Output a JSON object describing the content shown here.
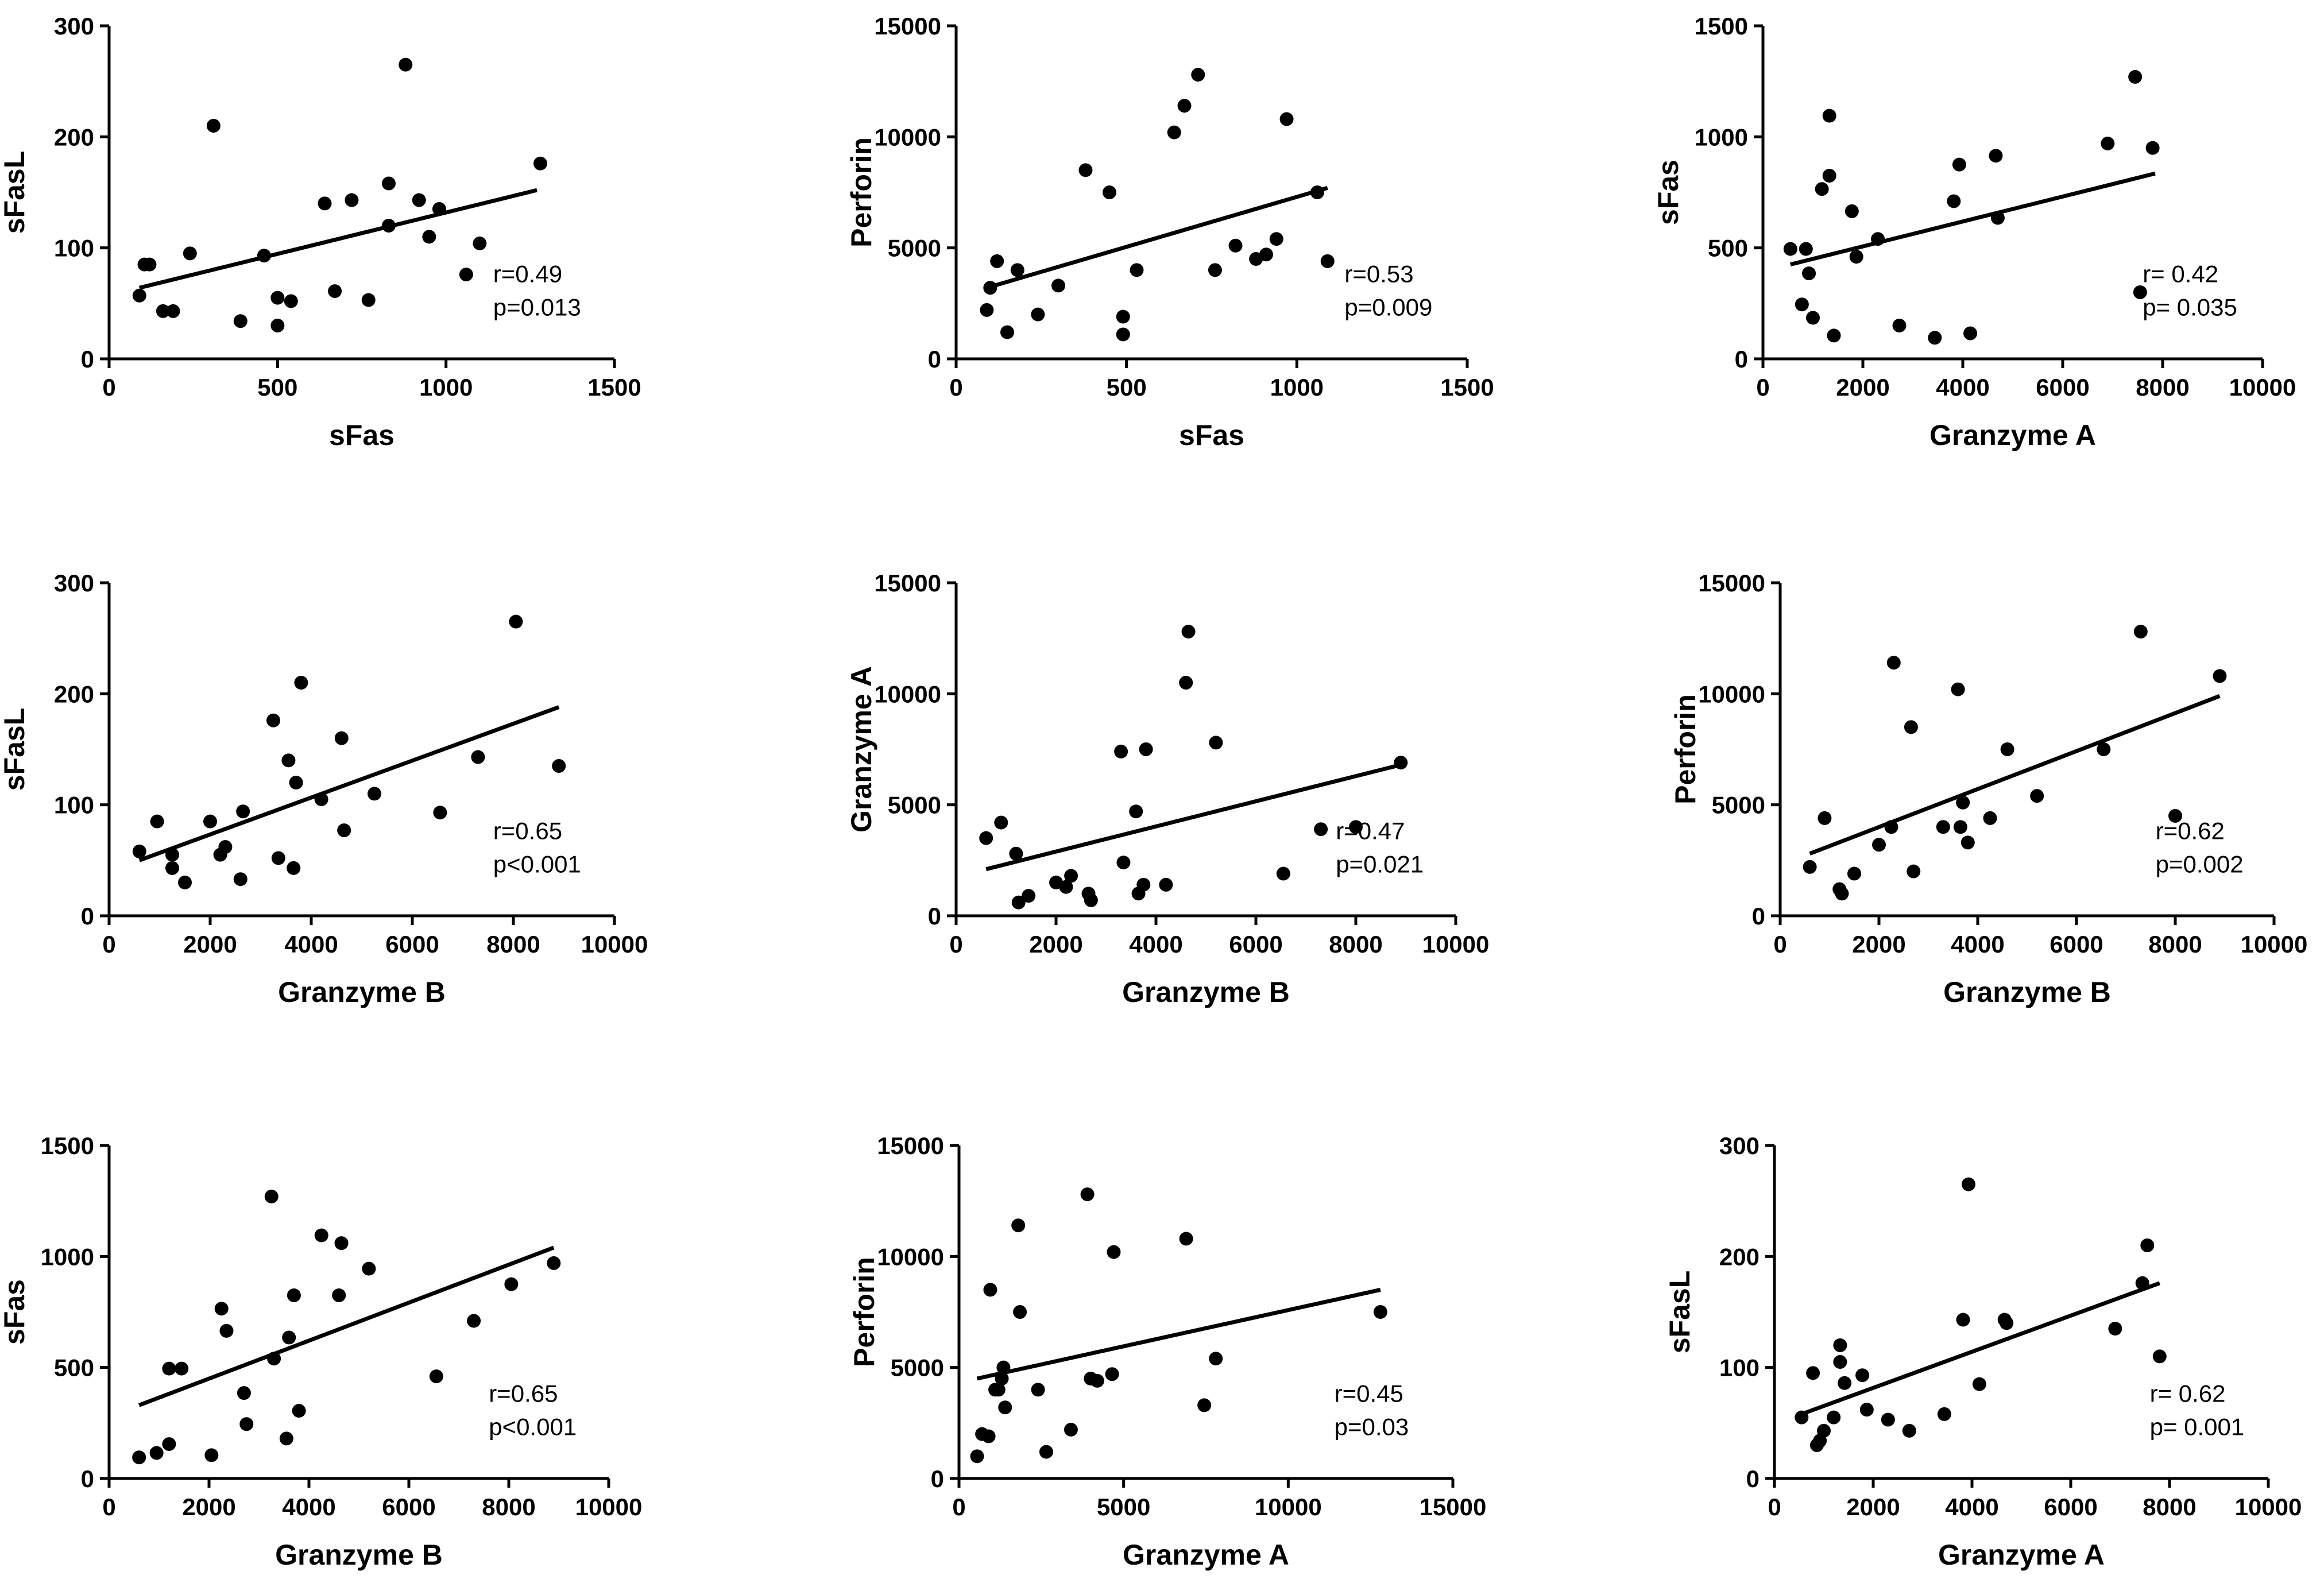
{
  "chart_data": [
    {
      "type": "scatter",
      "xlabel": "sFas",
      "ylabel": "sFasL",
      "xlim": [
        0,
        1500
      ],
      "ylim": [
        0,
        300
      ],
      "xticks": [
        0,
        500,
        1000,
        1500
      ],
      "yticks": [
        0,
        100,
        200,
        300
      ],
      "annotation": [
        "r=0.49",
        "p=0.013"
      ],
      "fit": [
        [
          90,
          64
        ],
        [
          1270,
          152
        ]
      ],
      "points": [
        [
          90,
          57
        ],
        [
          105,
          85
        ],
        [
          120,
          85
        ],
        [
          160,
          43
        ],
        [
          190,
          43
        ],
        [
          240,
          95
        ],
        [
          310,
          210
        ],
        [
          390,
          34
        ],
        [
          460,
          93
        ],
        [
          500,
          30
        ],
        [
          500,
          55
        ],
        [
          540,
          52
        ],
        [
          640,
          140
        ],
        [
          670,
          61
        ],
        [
          720,
          143
        ],
        [
          770,
          53
        ],
        [
          830,
          120
        ],
        [
          830,
          158
        ],
        [
          880,
          265
        ],
        [
          920,
          143
        ],
        [
          950,
          110
        ],
        [
          980,
          135
        ],
        [
          1060,
          76
        ],
        [
          1100,
          104
        ],
        [
          1280,
          176
        ]
      ]
    },
    {
      "type": "scatter",
      "xlabel": "sFas",
      "ylabel": "Perforin",
      "xlim": [
        0,
        1500
      ],
      "ylim": [
        0,
        15000
      ],
      "xticks": [
        0,
        500,
        1000,
        1500
      ],
      "yticks": [
        0,
        5000,
        10000,
        15000
      ],
      "annotation": [
        "r=0.53",
        "p=0.009"
      ],
      "fit": [
        [
          90,
          3200
        ],
        [
          1090,
          7700
        ]
      ],
      "points": [
        [
          90,
          2200
        ],
        [
          100,
          3200
        ],
        [
          120,
          4400
        ],
        [
          150,
          1200
        ],
        [
          180,
          4000
        ],
        [
          240,
          2000
        ],
        [
          300,
          3300
        ],
        [
          380,
          8500
        ],
        [
          450,
          7500
        ],
        [
          490,
          1900
        ],
        [
          490,
          1100
        ],
        [
          530,
          4000
        ],
        [
          640,
          10200
        ],
        [
          670,
          11400
        ],
        [
          710,
          12800
        ],
        [
          760,
          4000
        ],
        [
          820,
          5100
        ],
        [
          880,
          4500
        ],
        [
          910,
          4700
        ],
        [
          940,
          5400
        ],
        [
          970,
          10800
        ],
        [
          1060,
          7500
        ],
        [
          1090,
          4400
        ]
      ]
    },
    {
      "type": "scatter",
      "xlabel": "Granzyme A",
      "ylabel": "sFas",
      "xlim": [
        0,
        10000
      ],
      "ylim": [
        0,
        1500
      ],
      "xticks": [
        0,
        2000,
        4000,
        6000,
        8000,
        10000
      ],
      "yticks": [
        0,
        500,
        1000,
        1500
      ],
      "annotation": [
        "r= 0.42",
        "p= 0.035"
      ],
      "fit": [
        [
          550,
          425
        ],
        [
          7850,
          835
        ]
      ],
      "points": [
        [
          550,
          495
        ],
        [
          780,
          245
        ],
        [
          860,
          495
        ],
        [
          920,
          385
        ],
        [
          1000,
          185
        ],
        [
          1180,
          765
        ],
        [
          1330,
          1095
        ],
        [
          1330,
          825
        ],
        [
          1420,
          105
        ],
        [
          1780,
          665
        ],
        [
          1870,
          460
        ],
        [
          2300,
          540
        ],
        [
          2730,
          150
        ],
        [
          3440,
          95
        ],
        [
          3820,
          710
        ],
        [
          3930,
          875
        ],
        [
          4150,
          115
        ],
        [
          4660,
          915
        ],
        [
          4700,
          635
        ],
        [
          6900,
          970
        ],
        [
          7450,
          1270
        ],
        [
          7550,
          300
        ],
        [
          7800,
          950
        ]
      ]
    },
    {
      "type": "scatter",
      "xlabel": "Granzyme B",
      "ylabel": "sFasL",
      "xlim": [
        0,
        10000
      ],
      "ylim": [
        0,
        300
      ],
      "xticks": [
        0,
        2000,
        4000,
        6000,
        8000,
        10000
      ],
      "yticks": [
        0,
        100,
        200,
        300
      ],
      "annotation": [
        "r=0.65",
        "p<0.001"
      ],
      "fit": [
        [
          600,
          50
        ],
        [
          8900,
          188
        ]
      ],
      "points": [
        [
          600,
          58
        ],
        [
          950,
          85
        ],
        [
          1250,
          55
        ],
        [
          1250,
          43
        ],
        [
          1500,
          30
        ],
        [
          2000,
          85
        ],
        [
          2200,
          55
        ],
        [
          2300,
          62
        ],
        [
          2600,
          33
        ],
        [
          2650,
          94
        ],
        [
          3250,
          176
        ],
        [
          3350,
          52
        ],
        [
          3550,
          140
        ],
        [
          3650,
          43
        ],
        [
          3700,
          120
        ],
        [
          3800,
          210
        ],
        [
          4200,
          105
        ],
        [
          4600,
          160
        ],
        [
          4650,
          77
        ],
        [
          5250,
          110
        ],
        [
          6550,
          93
        ],
        [
          7300,
          143
        ],
        [
          8050,
          265
        ],
        [
          8900,
          135
        ]
      ]
    },
    {
      "type": "scatter",
      "xlabel": "Granzyme B",
      "ylabel": "Granzyme A",
      "xlim": [
        0,
        10000
      ],
      "ylim": [
        0,
        15000
      ],
      "xticks": [
        0,
        2000,
        4000,
        6000,
        8000,
        10000
      ],
      "yticks": [
        0,
        5000,
        10000,
        15000
      ],
      "annotation": [
        "r=0.47",
        "p=0.021"
      ],
      "fit": [
        [
          600,
          2100
        ],
        [
          8900,
          6800
        ]
      ],
      "points": [
        [
          600,
          3500
        ],
        [
          900,
          4200
        ],
        [
          1200,
          2800
        ],
        [
          1250,
          600
        ],
        [
          1450,
          900
        ],
        [
          2000,
          1500
        ],
        [
          2200,
          1300
        ],
        [
          2300,
          1800
        ],
        [
          2650,
          1000
        ],
        [
          2700,
          700
        ],
        [
          3300,
          7400
        ],
        [
          3350,
          2400
        ],
        [
          3600,
          4700
        ],
        [
          3650,
          1000
        ],
        [
          3750,
          1400
        ],
        [
          3800,
          7500
        ],
        [
          4200,
          1400
        ],
        [
          4600,
          10500
        ],
        [
          4650,
          12800
        ],
        [
          5200,
          7800
        ],
        [
          6550,
          1900
        ],
        [
          7300,
          3900
        ],
        [
          8000,
          4000
        ],
        [
          8900,
          6900
        ]
      ]
    },
    {
      "type": "scatter",
      "xlabel": "Granzyme B",
      "ylabel": "Perforin",
      "xlim": [
        0,
        10000
      ],
      "ylim": [
        0,
        15000
      ],
      "xticks": [
        0,
        2000,
        4000,
        6000,
        8000,
        10000
      ],
      "yticks": [
        0,
        5000,
        10000,
        15000
      ],
      "annotation": [
        "r=0.62",
        "p=0.002"
      ],
      "fit": [
        [
          600,
          2800
        ],
        [
          8900,
          9900
        ]
      ],
      "points": [
        [
          600,
          2200
        ],
        [
          900,
          4400
        ],
        [
          1200,
          1200
        ],
        [
          1250,
          1000
        ],
        [
          1500,
          1900
        ],
        [
          2000,
          3200
        ],
        [
          2250,
          4000
        ],
        [
          2300,
          11400
        ],
        [
          2650,
          8500
        ],
        [
          2700,
          2000
        ],
        [
          3300,
          4000
        ],
        [
          3600,
          10200
        ],
        [
          3650,
          4000
        ],
        [
          3700,
          5100
        ],
        [
          3800,
          3300
        ],
        [
          4250,
          4400
        ],
        [
          4600,
          7500
        ],
        [
          5200,
          5400
        ],
        [
          6550,
          7500
        ],
        [
          7300,
          12800
        ],
        [
          8000,
          4500
        ],
        [
          8900,
          10800
        ]
      ]
    },
    {
      "type": "scatter",
      "xlabel": "Granzyme B",
      "ylabel": "sFas",
      "xlim": [
        0,
        10000
      ],
      "ylim": [
        0,
        1500
      ],
      "xticks": [
        0,
        2000,
        4000,
        6000,
        8000,
        10000
      ],
      "yticks": [
        0,
        500,
        1000,
        1500
      ],
      "annotation": [
        "r=0.65",
        "p<0.001"
      ],
      "fit": [
        [
          600,
          330
        ],
        [
          8900,
          1040
        ]
      ],
      "points": [
        [
          600,
          95
        ],
        [
          950,
          115
        ],
        [
          1200,
          155
        ],
        [
          1200,
          495
        ],
        [
          1450,
          495
        ],
        [
          2050,
          105
        ],
        [
          2250,
          765
        ],
        [
          2350,
          665
        ],
        [
          2700,
          385
        ],
        [
          2750,
          245
        ],
        [
          3250,
          1270
        ],
        [
          3300,
          540
        ],
        [
          3550,
          180
        ],
        [
          3600,
          635
        ],
        [
          3700,
          825
        ],
        [
          3800,
          305
        ],
        [
          4250,
          1095
        ],
        [
          4600,
          825
        ],
        [
          4650,
          1060
        ],
        [
          5200,
          945
        ],
        [
          6550,
          460
        ],
        [
          7300,
          710
        ],
        [
          8050,
          875
        ],
        [
          8900,
          970
        ]
      ]
    },
    {
      "type": "scatter",
      "xlabel": "Granzyme A",
      "ylabel": "Perforin",
      "xlim": [
        0,
        15000
      ],
      "ylim": [
        0,
        15000
      ],
      "xticks": [
        0,
        5000,
        10000,
        15000
      ],
      "yticks": [
        0,
        5000,
        10000,
        15000
      ],
      "annotation": [
        "r=0.45",
        "p=0.03"
      ],
      "fit": [
        [
          550,
          4500
        ],
        [
          12800,
          8500
        ]
      ],
      "points": [
        [
          550,
          1000
        ],
        [
          700,
          2000
        ],
        [
          900,
          1900
        ],
        [
          950,
          8500
        ],
        [
          1100,
          4000
        ],
        [
          1200,
          4000
        ],
        [
          1300,
          4500
        ],
        [
          1350,
          5000
        ],
        [
          1400,
          3200
        ],
        [
          1800,
          11400
        ],
        [
          1850,
          7500
        ],
        [
          2400,
          4000
        ],
        [
          2650,
          1200
        ],
        [
          3400,
          2200
        ],
        [
          3900,
          12800
        ],
        [
          4000,
          4500
        ],
        [
          4200,
          4400
        ],
        [
          4650,
          4700
        ],
        [
          4700,
          10200
        ],
        [
          6900,
          10800
        ],
        [
          7450,
          3300
        ],
        [
          7800,
          5400
        ],
        [
          12800,
          7500
        ]
      ]
    },
    {
      "type": "scatter",
      "xlabel": "Granzyme A",
      "ylabel": "sFasL",
      "xlim": [
        0,
        10000
      ],
      "ylim": [
        0,
        300
      ],
      "xticks": [
        0,
        2000,
        4000,
        6000,
        8000,
        10000
      ],
      "yticks": [
        0,
        100,
        200,
        300
      ],
      "annotation": [
        "r= 0.62",
        "p= 0.001"
      ],
      "fit": [
        [
          550,
          58
        ],
        [
          7800,
          176
        ]
      ],
      "points": [
        [
          550,
          55
        ],
        [
          780,
          95
        ],
        [
          860,
          30
        ],
        [
          920,
          34
        ],
        [
          1000,
          43
        ],
        [
          1200,
          55
        ],
        [
          1330,
          105
        ],
        [
          1330,
          120
        ],
        [
          1420,
          86
        ],
        [
          1780,
          93
        ],
        [
          1870,
          62
        ],
        [
          2300,
          53
        ],
        [
          2730,
          43
        ],
        [
          3440,
          58
        ],
        [
          3820,
          143
        ],
        [
          3930,
          265
        ],
        [
          4150,
          85
        ],
        [
          4660,
          143
        ],
        [
          4700,
          140
        ],
        [
          6900,
          135
        ],
        [
          7450,
          176
        ],
        [
          7550,
          210
        ],
        [
          7800,
          110
        ]
      ]
    }
  ]
}
